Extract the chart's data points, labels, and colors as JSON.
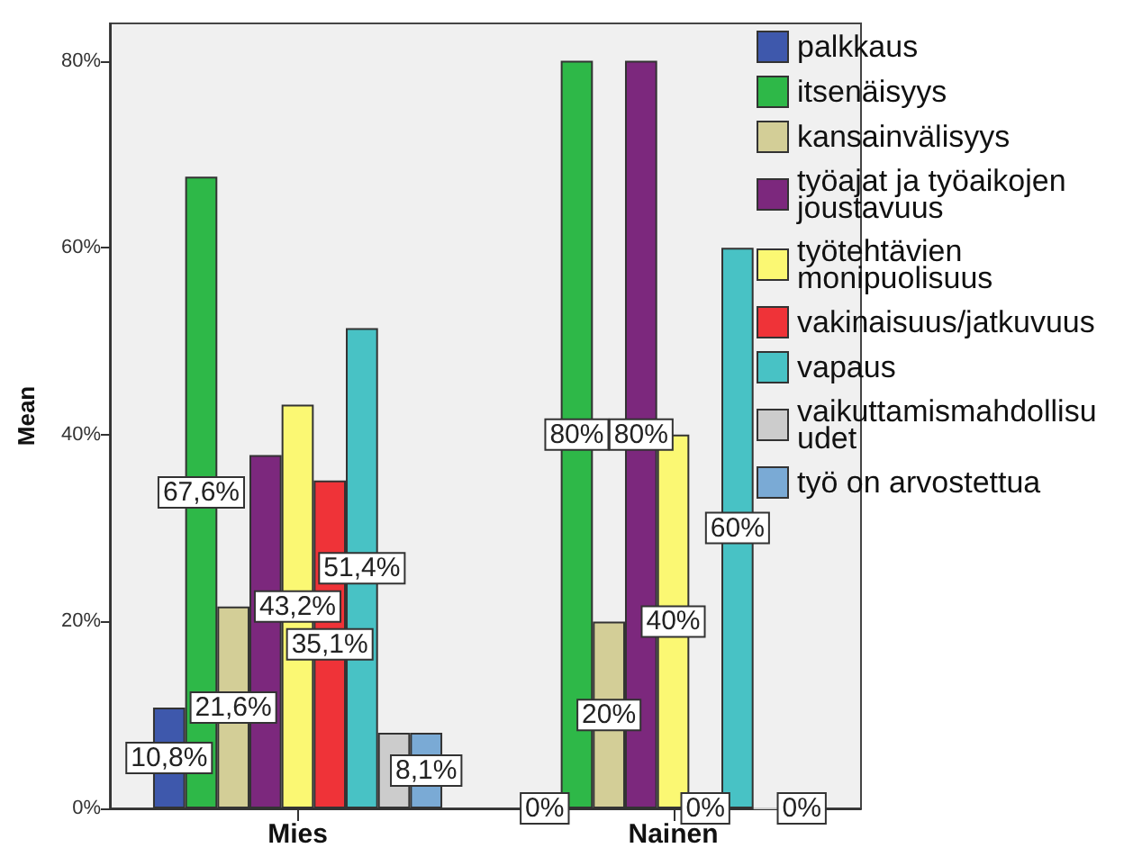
{
  "chart_data": {
    "type": "bar",
    "ylabel": "Mean",
    "categories": [
      "Mies",
      "Nainen"
    ],
    "series": [
      {
        "name": "palkkaus",
        "color": "#3e58ac",
        "values": [
          10.8,
          0
        ],
        "value_labels": [
          "10,8%",
          "0%"
        ]
      },
      {
        "name": "itsenäisyys",
        "color": "#2eb848",
        "values": [
          67.6,
          80
        ],
        "value_labels": [
          "67,6%",
          "80%"
        ]
      },
      {
        "name": "kansainvälisyys",
        "color": "#d3ce97",
        "values": [
          21.6,
          20
        ],
        "value_labels": [
          "21,6%",
          "20%"
        ]
      },
      {
        "name": "työajat ja työaikojen joustavuus",
        "color": "#7c287d",
        "values": [
          37.8,
          80
        ],
        "value_labels": [
          null,
          "80%"
        ]
      },
      {
        "name": "työtehtävien monipuolisuus",
        "color": "#fbf873",
        "values": [
          43.2,
          40
        ],
        "value_labels": [
          "43,2%",
          "40%"
        ]
      },
      {
        "name": "vakinaisuus/jatkuvuus",
        "color": "#ef3338",
        "values": [
          35.1,
          0
        ],
        "value_labels": [
          "35,1%",
          "0%"
        ]
      },
      {
        "name": "vapaus",
        "color": "#48c2c5",
        "values": [
          51.4,
          60
        ],
        "value_labels": [
          "51,4%",
          "60%"
        ]
      },
      {
        "name": "vaikuttamismahdollisuudet",
        "color": "#cccccc",
        "values": [
          8.1,
          0
        ],
        "value_labels": [
          null,
          null
        ]
      },
      {
        "name": "työ on arvostettua",
        "color": "#7aaad5",
        "values": [
          8.1,
          0
        ],
        "value_labels": [
          "8,1%",
          "0%"
        ]
      }
    ],
    "ylim": [
      0,
      84
    ],
    "yticks": [
      {
        "value": 0,
        "label": "0%"
      },
      {
        "value": 20,
        "label": "20%"
      },
      {
        "value": 40,
        "label": "40%"
      },
      {
        "value": 60,
        "label": "60%"
      },
      {
        "value": 80,
        "label": "80%"
      }
    ],
    "grid": false,
    "legend": "top right"
  }
}
